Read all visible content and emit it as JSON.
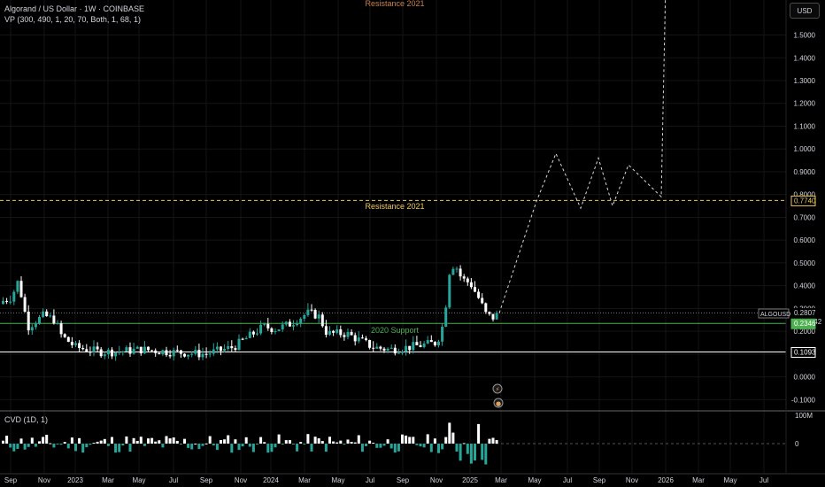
{
  "header": {
    "symbol_title": "Algorand / US Dollar · 1W · COINBASE",
    "indicator": "VP (300, 490, 1, 20, 70, Both, 1, 68, 1)",
    "currency_button": "USD",
    "cvd_label": "CVD (1D, 1)"
  },
  "price_axis": {
    "ticks": [
      "1.5000",
      "1.4000",
      "1.3000",
      "1.2000",
      "1.1000",
      "1.0000",
      "0.9000",
      "0.8000",
      "0.7000",
      "0.6000",
      "0.5000",
      "0.4000",
      "0.3000",
      "0.2000",
      "0.1000",
      "0.0000",
      "-0.1000"
    ],
    "tick_values": [
      1.5,
      1.4,
      1.3,
      1.2,
      1.1,
      1.0,
      0.9,
      0.8,
      0.7,
      0.6,
      0.5,
      0.4,
      0.3,
      0.2,
      0.1,
      0.0,
      -0.1
    ]
  },
  "cvd_axis": {
    "ticks": [
      "100M",
      "0"
    ]
  },
  "time_axis": {
    "labels": [
      "Sep",
      "Nov",
      "2023",
      "Mar",
      "May",
      "Jul",
      "Sep",
      "Nov",
      "2024",
      "Mar",
      "May",
      "Jul",
      "Sep",
      "Nov",
      "2025",
      "Mar",
      "May",
      "Jul",
      "Sep",
      "Nov",
      "2026",
      "Mar",
      "May",
      "Jul"
    ]
  },
  "levels": {
    "resistance_top_label": "Resistance 2021",
    "resistance_label": "Resistance 2021",
    "resistance_value": "0.7740",
    "resistance_price": 0.774,
    "support_label": "2020 Support",
    "support_value": "0.2346",
    "support_price": 0.2346,
    "low_value": "0.1093",
    "low_price": 0.1093
  },
  "current": {
    "ticker": "ALGOUSD",
    "price": "0.2807",
    "countdown": "07:18:42",
    "price_value": 0.2807
  },
  "colors": {
    "up": "#26a69a",
    "down": "#ffffff",
    "resistance": "#f0c95e",
    "resistance_top": "#c8804a",
    "support": "#4caf50",
    "axis_text": "#d1d4dc",
    "background": "#000000"
  },
  "chart_data": {
    "type": "candlestick",
    "title": "Algorand / US Dollar · 1W · COINBASE",
    "ylim": [
      -0.13,
      1.88
    ],
    "x": [
      "2022-09",
      "2022-11",
      "2023-01",
      "2023-03",
      "2023-05",
      "2023-07",
      "2023-09",
      "2023-11",
      "2024-01",
      "2024-03",
      "2024-05",
      "2024-07",
      "2024-09",
      "2024-11",
      "2025-01",
      "2025-03"
    ],
    "close_approx": [
      0.33,
      0.35,
      0.24,
      0.26,
      0.19,
      0.12,
      0.1,
      0.14,
      0.22,
      0.27,
      0.19,
      0.14,
      0.13,
      0.16,
      0.46,
      0.28
    ],
    "projection": {
      "x": [
        "2025-03",
        "2025-05",
        "2025-06",
        "2025-07",
        "2025-08",
        "2025-09",
        "2025-10",
        "2025-11",
        "2026-01"
      ],
      "y": [
        0.28,
        0.77,
        0.98,
        0.74,
        0.96,
        0.75,
        0.93,
        0.79,
        1.92
      ]
    },
    "hlines": [
      0.774,
      0.2346,
      0.1093
    ]
  }
}
